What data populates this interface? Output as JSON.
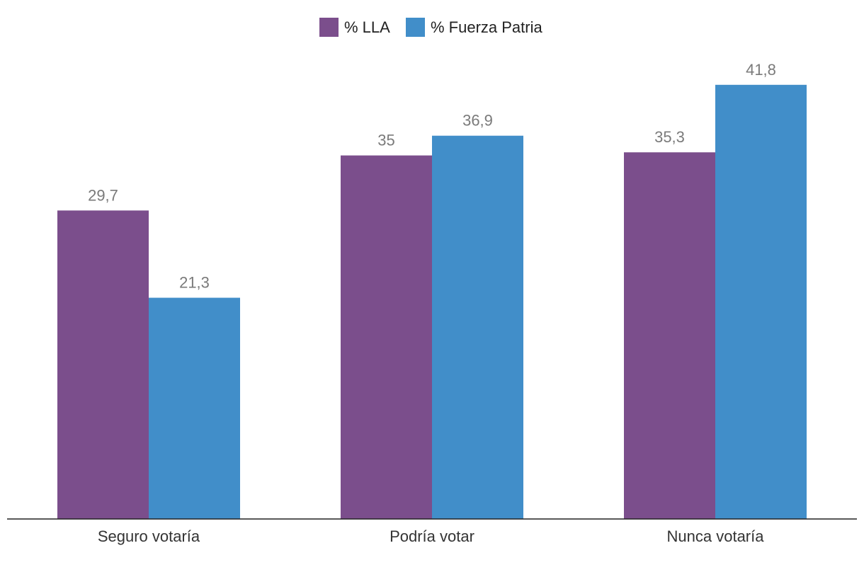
{
  "chart_data": {
    "type": "bar",
    "title": "",
    "xlabel": "",
    "ylabel": "",
    "ylim": [
      0,
      43
    ],
    "grid": false,
    "legend_position": "top-center",
    "categories": [
      "Seguro votaría",
      "Podría votar",
      "Nunca votaría"
    ],
    "series": [
      {
        "name": "% LLA",
        "color": "#7b4e8c",
        "values": [
          29.7,
          35,
          35.3
        ],
        "value_labels": [
          "29,7",
          "35",
          "35,3"
        ]
      },
      {
        "name": "% Fuerza Patria",
        "color": "#418ec9",
        "values": [
          21.3,
          36.9,
          41.8
        ],
        "value_labels": [
          "21,3",
          "36,9",
          "41,8"
        ]
      }
    ]
  }
}
